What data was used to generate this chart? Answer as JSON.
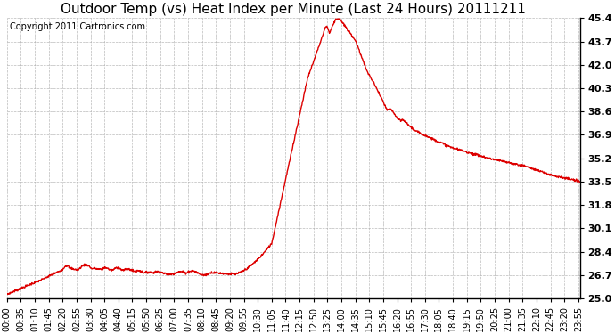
{
  "title": "Outdoor Temp (vs) Heat Index per Minute (Last 24 Hours) 20111211",
  "copyright": "Copyright 2011 Cartronics.com",
  "line_color": "#dd0000",
  "background_color": "#ffffff",
  "grid_color": "#aaaaaa",
  "ylim": [
    25.0,
    45.4
  ],
  "yticks": [
    25.0,
    26.7,
    28.4,
    30.1,
    31.8,
    33.5,
    35.2,
    36.9,
    38.6,
    40.3,
    42.0,
    43.7,
    45.4
  ],
  "xlabel_rotation": 90,
  "title_fontsize": 11,
  "tick_fontsize": 8,
  "copyright_fontsize": 7
}
